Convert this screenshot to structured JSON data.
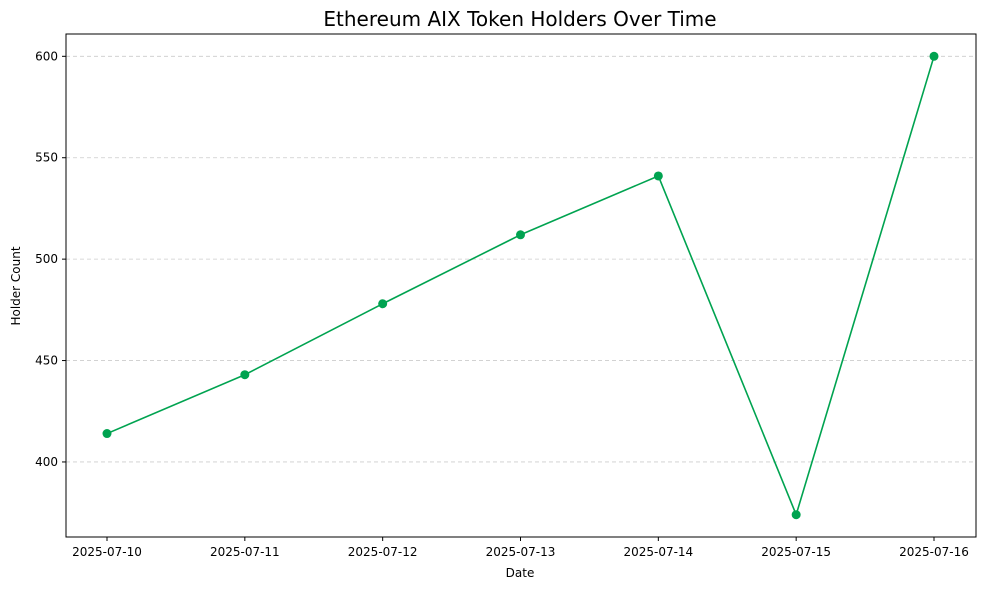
{
  "chart_data": {
    "type": "line",
    "title": "Ethereum AIX Token Holders Over Time",
    "xlabel": "Date",
    "ylabel": "Holder Count",
    "categories": [
      "2025-07-10",
      "2025-07-11",
      "2025-07-12",
      "2025-07-13",
      "2025-07-14",
      "2025-07-15",
      "2025-07-16"
    ],
    "series": [
      {
        "values": [
          414,
          443,
          478,
          512,
          541,
          374,
          600
        ],
        "color": "#00a350",
        "marker": "circle"
      }
    ],
    "ylim": [
      363,
      611
    ],
    "yticks": [
      400,
      450,
      500,
      550,
      600
    ],
    "grid": {
      "y": true,
      "x": false,
      "style": "dashed"
    },
    "legend": "none"
  }
}
